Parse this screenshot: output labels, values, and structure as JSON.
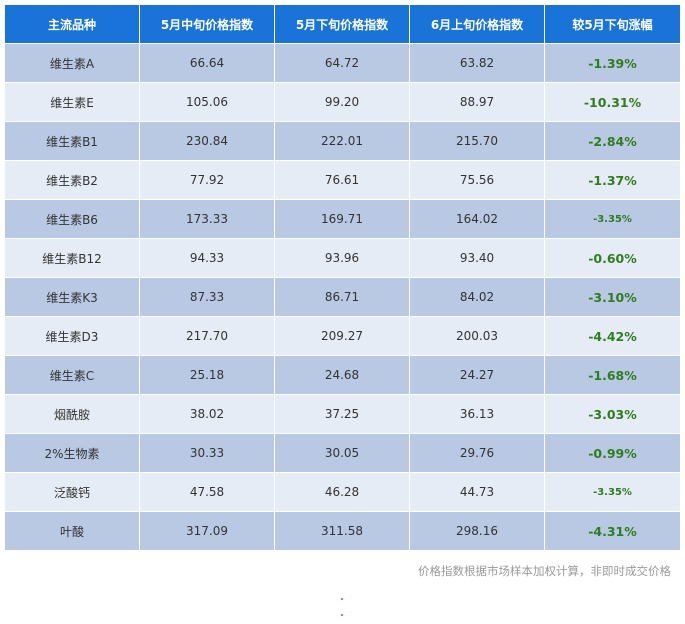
{
  "table": {
    "headers": [
      "主流品种",
      "5月中旬价格指数",
      "5月下旬价格指数",
      "6月上旬价格指数",
      "较5月下旬涨幅"
    ],
    "rows": [
      {
        "name": "维生素A",
        "mid_may": "66.64",
        "late_may": "64.72",
        "early_june": "63.82",
        "change": "-1.39%"
      },
      {
        "name": "维生素E",
        "mid_may": "105.06",
        "late_may": "99.20",
        "early_june": "88.97",
        "change": "-10.31%"
      },
      {
        "name": "维生素B1",
        "mid_may": "230.84",
        "late_may": "222.01",
        "early_june": "215.70",
        "change": "-2.84%"
      },
      {
        "name": "维生素B2",
        "mid_may": "77.92",
        "late_may": "76.61",
        "early_june": "75.56",
        "change": "-1.37%"
      },
      {
        "name": "维生素B6",
        "mid_may": "173.33",
        "late_may": "169.71",
        "early_june": "164.02",
        "change": "-3.35%"
      },
      {
        "name": "维生素B12",
        "mid_may": "94.33",
        "late_may": "93.96",
        "early_june": "93.40",
        "change": "-0.60%"
      },
      {
        "name": "维生素K3",
        "mid_may": "87.33",
        "late_may": "86.71",
        "early_june": "84.02",
        "change": "-3.10%"
      },
      {
        "name": "维生素D3",
        "mid_may": "217.70",
        "late_may": "209.27",
        "early_june": "200.03",
        "change": "-4.42%"
      },
      {
        "name": "维生素C",
        "mid_may": "25.18",
        "late_may": "24.68",
        "early_june": "24.27",
        "change": "-1.68%"
      },
      {
        "name": "烟酰胺",
        "mid_may": "38.02",
        "late_may": "37.25",
        "early_june": "36.13",
        "change": "-3.03%"
      },
      {
        "name": "2%生物素",
        "mid_may": "30.33",
        "late_may": "30.05",
        "early_june": "29.76",
        "change": "-0.99%"
      },
      {
        "name": "泛酸钙",
        "mid_may": "47.58",
        "late_may": "46.28",
        "early_june": "44.73",
        "change": "-3.35%"
      },
      {
        "name": "叶酸",
        "mid_may": "317.09",
        "late_may": "311.58",
        "early_june": "298.16",
        "change": "-4.31%"
      }
    ]
  },
  "footnote": "价格指数根据市场样本加权计算，非即时成交价格",
  "colors": {
    "header_bg": "#1a73d9",
    "row_dark": "#b9c8e3",
    "row_light": "#e6ecf6",
    "change_text": "#2e7d1f"
  }
}
